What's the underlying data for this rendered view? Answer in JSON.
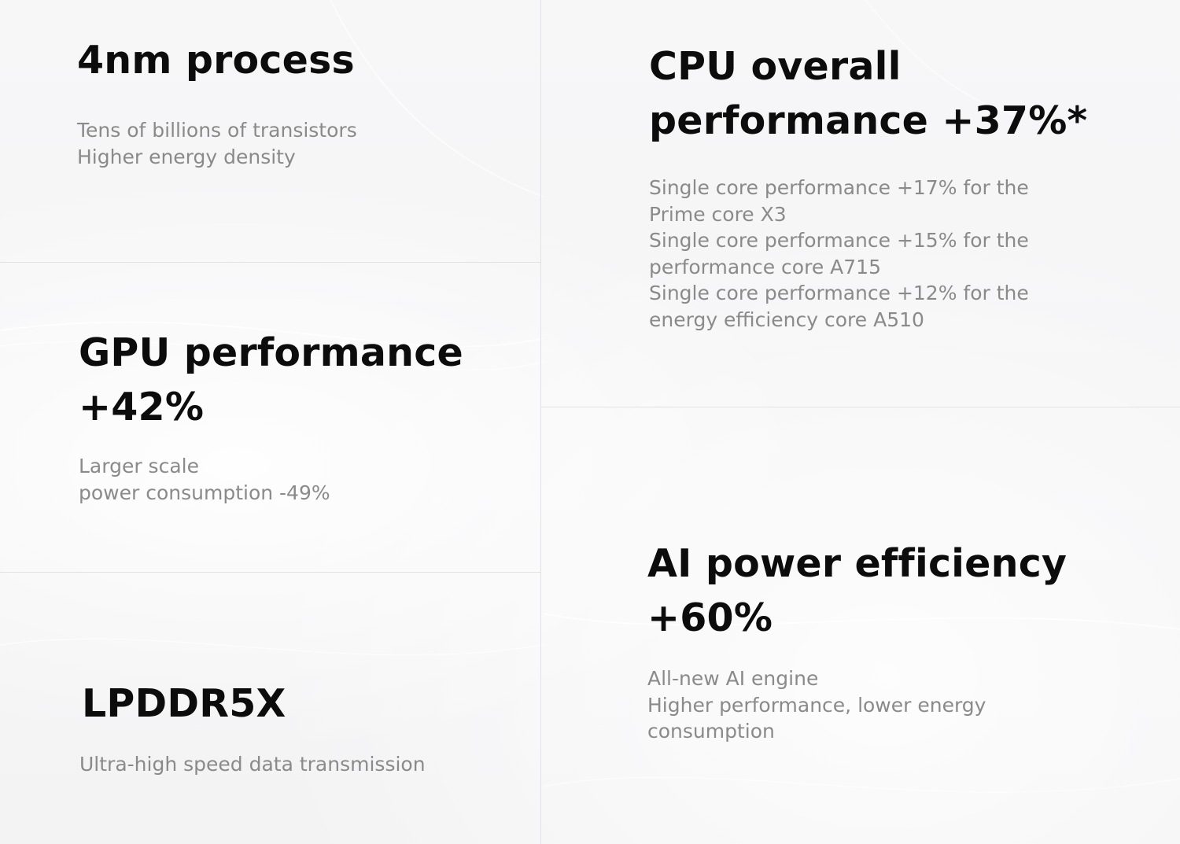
{
  "colors": {
    "background": "#f5f5f6",
    "title": "#0c0c0c",
    "description": "#8a8a8a",
    "divider": "#e2e2e4"
  },
  "cells": {
    "process": {
      "title": "4nm process",
      "lines": [
        "Tens of billions of transistors",
        "Higher energy density"
      ]
    },
    "gpu": {
      "title_lines": [
        "GPU performance",
        "+42%"
      ],
      "lines": [
        "Larger scale",
        "power consumption -49%"
      ]
    },
    "memory": {
      "title": "LPDDR5X",
      "lines": [
        "Ultra-high speed data transmission"
      ]
    },
    "cpu": {
      "title_lines": [
        "CPU overall",
        "performance +37%*"
      ],
      "lines": [
        "Single core performance +17% for the",
        "Prime core X3",
        "Single core performance +15% for the",
        "performance core A715",
        "Single core performance +12% for the",
        "energy efficiency core A510"
      ]
    },
    "ai": {
      "title_lines": [
        "AI power efficiency",
        "+60%"
      ],
      "lines": [
        "All-new AI engine",
        "Higher performance, lower energy",
        "consumption"
      ]
    }
  }
}
